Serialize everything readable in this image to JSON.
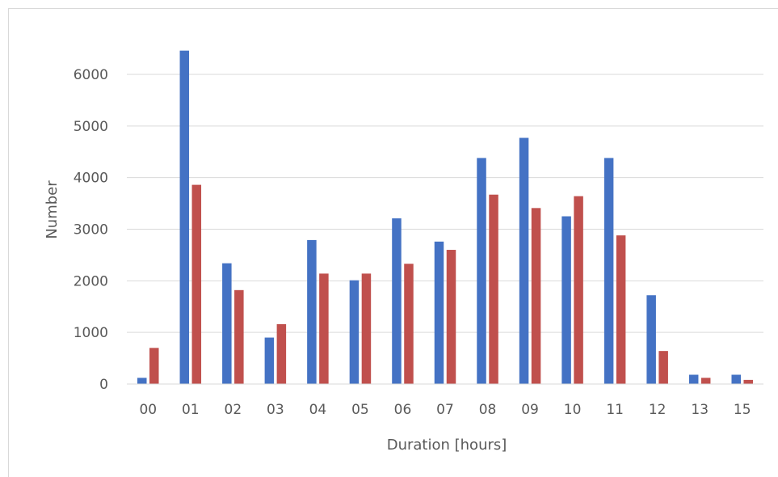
{
  "chart_data": {
    "type": "bar",
    "categories": [
      "00",
      "01",
      "02",
      "03",
      "04",
      "05",
      "06",
      "07",
      "08",
      "09",
      "10",
      "11",
      "12",
      "13",
      "15"
    ],
    "series": [
      {
        "values": [
          120,
          6460,
          2340,
          900,
          2790,
          2010,
          3210,
          2760,
          4380,
          4770,
          3250,
          4380,
          1720,
          180,
          180
        ],
        "color": "#4472c4"
      },
      {
        "values": [
          700,
          3860,
          1820,
          1160,
          2140,
          2140,
          2330,
          2600,
          3670,
          3410,
          3640,
          2880,
          640,
          120,
          80
        ],
        "color": "#c0504d"
      }
    ],
    "title": "",
    "xlabel": "Duration [hours]",
    "ylabel": "Number",
    "ylim": [
      0,
      6000
    ],
    "yticks": [
      0,
      1000,
      2000,
      3000,
      4000,
      5000,
      6000
    ],
    "grid": true
  }
}
